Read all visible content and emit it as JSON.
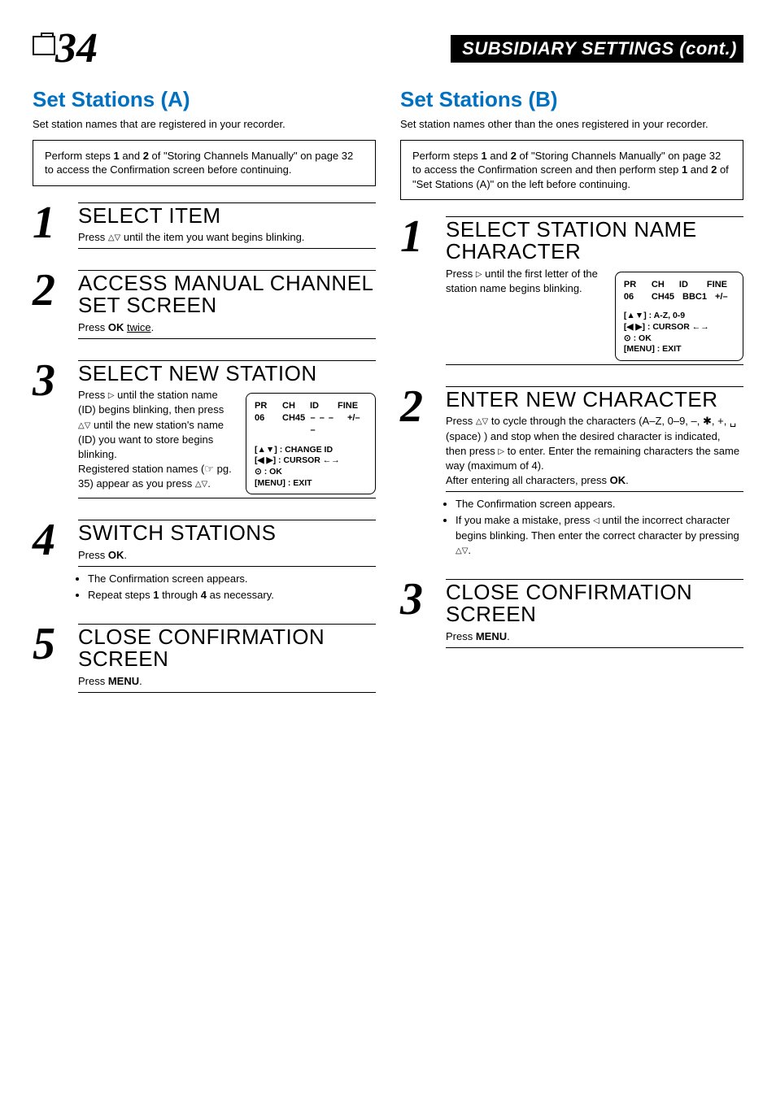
{
  "header": {
    "page_number": "34",
    "title": "SUBSIDIARY SETTINGS (cont.)"
  },
  "colors": {
    "section_title": "#0070c0",
    "text": "#000000",
    "header_bg": "#000000",
    "header_fg": "#ffffff",
    "page_bg": "#ffffff"
  },
  "left": {
    "title": "Set Stations (A)",
    "intro": "Set station names that are registered in your recorder.",
    "box_html": "Perform steps <b>1</b> and <b>2</b> of \"Storing Channels Manually\" on page 32 to access the Confirmation screen before continuing.",
    "steps": [
      {
        "num": "1",
        "title": "SELECT ITEM",
        "body_html": "Press <span class='tri'>△▽</span> until the item you want begins blinking."
      },
      {
        "num": "2",
        "title": "ACCESS MANUAL CHANNEL SET SCREEN",
        "body_html": "Press <b>OK</b> <span class='underline'>twice</span>."
      },
      {
        "num": "3",
        "title": "SELECT NEW STATION",
        "body_html": "Press <span class='tri'>▷</span> until the station name (ID) begins blinking, then press <span class='tri'>△▽</span> until the new station's name (ID) you want to store begins blinking.<br>Registered station names (☞ pg. 35) appear as you press <span class='tri'>△▽</span>.",
        "display": {
          "headers": [
            "PR",
            "CH",
            "ID",
            "FINE"
          ],
          "values": [
            "06",
            "CH45",
            "– – – –",
            "+/–"
          ],
          "legend": [
            "[▲▼] : CHANGE ID",
            "[◀ ▶] : CURSOR ←→",
            "⊙ : OK",
            "[MENU] : EXIT"
          ]
        }
      },
      {
        "num": "4",
        "title": "SWITCH STATIONS",
        "body_html": "Press <b>OK</b>.",
        "bullets": [
          "The Confirmation screen appears.",
          "Repeat steps <b>1</b> through <b>4</b> as necessary."
        ]
      },
      {
        "num": "5",
        "title": "CLOSE CONFIRMATION SCREEN",
        "body_html": "Press <b>MENU</b>."
      }
    ]
  },
  "right": {
    "title": "Set Stations (B)",
    "intro": "Set station names other than the ones registered in your recorder.",
    "box_html": "Perform steps <b>1</b> and <b>2</b> of \"Storing Channels Manually\" on page 32 to access the Confirmation screen and then perform step <b>1</b> and <b>2</b> of \"Set Stations (A)\" on the left before continuing.",
    "steps": [
      {
        "num": "1",
        "title": "SELECT STATION NAME CHARACTER",
        "body_html": "Press <span class='tri'>▷</span> until the first letter of the station name begins blinking.",
        "display": {
          "headers": [
            "PR",
            "CH",
            "ID",
            "FINE"
          ],
          "values": [
            "06",
            "CH45",
            "BBC1",
            "+/–"
          ],
          "legend": [
            "[▲▼] : A-Z, 0-9",
            "[◀ ▶] : CURSOR ←→",
            "⊙ : OK",
            "[MENU] : EXIT"
          ]
        }
      },
      {
        "num": "2",
        "title": "ENTER NEW CHARACTER",
        "body_html": "Press <span class='tri'>△▽</span> to cycle through the characters (A–Z, 0–9, –, ✱, +, ␣ (space) ) and stop when the desired character is indicated, then press <span class='tri'>▷</span> to enter. Enter the remaining characters the same way (maximum of 4).<br>After entering all characters, press <b>OK</b>.",
        "bullets": [
          "The Confirmation screen appears.",
          "If you make a mistake, press <span class='tri'>◁</span> until the incorrect character begins blinking. Then enter the correct character by pressing <span class='tri'>△▽</span>."
        ]
      },
      {
        "num": "3",
        "title": "CLOSE CONFIRMATION SCREEN",
        "body_html": "Press <b>MENU</b>."
      }
    ]
  }
}
